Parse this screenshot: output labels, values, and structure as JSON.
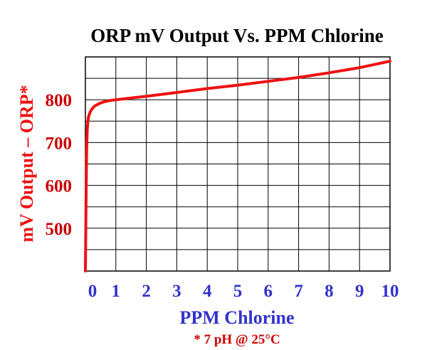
{
  "chart_data": {
    "type": "line",
    "title": "ORP mV Output Vs. PPM Chlorine",
    "xlabel": "PPM Chlorine",
    "ylabel": "mV Output – ORP*",
    "footnote": "* 7 pH @ 25°C",
    "xlim": [
      0,
      10
    ],
    "ylim": [
      400,
      900
    ],
    "x_ticks": [
      0,
      1,
      2,
      3,
      4,
      5,
      6,
      7,
      8,
      9,
      10
    ],
    "x_tick_labels": [
      "0",
      "1",
      "2",
      "3",
      "4",
      "5",
      "6",
      "7",
      "8",
      "9",
      "10"
    ],
    "y_ticks": [
      500,
      600,
      700,
      800
    ],
    "y_tick_labels": [
      "500",
      "600",
      "700",
      "800"
    ],
    "grid": true,
    "series": [
      {
        "x": [
          0.0,
          0.02,
          0.04,
          0.06,
          0.08,
          0.1,
          0.15,
          0.2,
          0.3,
          0.45,
          0.6,
          0.8,
          1.0,
          1.5,
          2,
          3,
          4,
          5,
          6,
          7,
          8,
          9,
          10
        ],
        "y": [
          400,
          560,
          680,
          730,
          748,
          760,
          770,
          777,
          785,
          791,
          795,
          798,
          800,
          804,
          808,
          817,
          826,
          834,
          843,
          852,
          863,
          875,
          890
        ]
      }
    ],
    "colors": {
      "line": "#ee1111",
      "title": "#000000",
      "ylabel": "#ee1111",
      "ytick": "#cc0000",
      "xtick": "#3333cc",
      "xlabel": "#3333cc",
      "footnote": "#cc0000",
      "grid": "#000000"
    }
  }
}
